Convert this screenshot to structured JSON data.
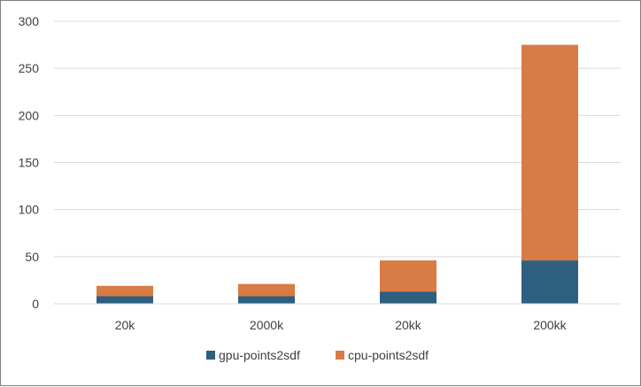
{
  "chart_data": {
    "type": "bar",
    "stacked": true,
    "categories": [
      "20k",
      "2000k",
      "20kk",
      "200kk"
    ],
    "series": [
      {
        "name": "gpu-points2sdf",
        "values": [
          8,
          8,
          13,
          46
        ],
        "color": "#2e5f7f"
      },
      {
        "name": "cpu-points2sdf",
        "values": [
          11,
          13,
          33,
          229
        ],
        "color": "#d97b45"
      }
    ],
    "ylim": [
      0,
      300
    ],
    "yticks": [
      "0",
      "50",
      "100",
      "150",
      "200",
      "250",
      "300"
    ],
    "grid": true,
    "legend": "bottom-center"
  }
}
